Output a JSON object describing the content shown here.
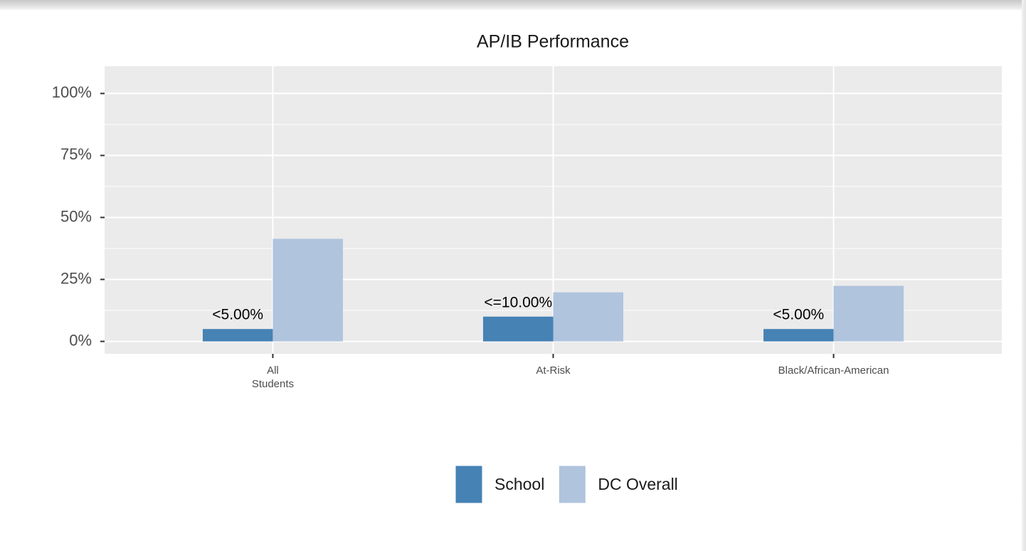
{
  "chart_data": {
    "type": "bar",
    "title": "AP/IB Performance",
    "categories": [
      "All\nStudents",
      "At-Risk",
      "Black/African-American"
    ],
    "series": [
      {
        "name": "School",
        "color": "#4682b4",
        "values": [
          5,
          10,
          5
        ],
        "value_labels": [
          "<5.00%",
          "<=10.00%",
          "<5.00%"
        ]
      },
      {
        "name": "DC Overall",
        "color": "#b0c4de",
        "values": [
          41.4,
          19.8,
          22.4
        ]
      }
    ],
    "ylim": [
      -5,
      111
    ],
    "yticks": [
      {
        "value": 0,
        "label": "0%"
      },
      {
        "value": 25,
        "label": "25%"
      },
      {
        "value": 50,
        "label": "50%"
      },
      {
        "value": 75,
        "label": "75%"
      },
      {
        "value": 100,
        "label": "100%"
      }
    ],
    "grid": true,
    "minor_grid": true,
    "legend": "bottom"
  }
}
